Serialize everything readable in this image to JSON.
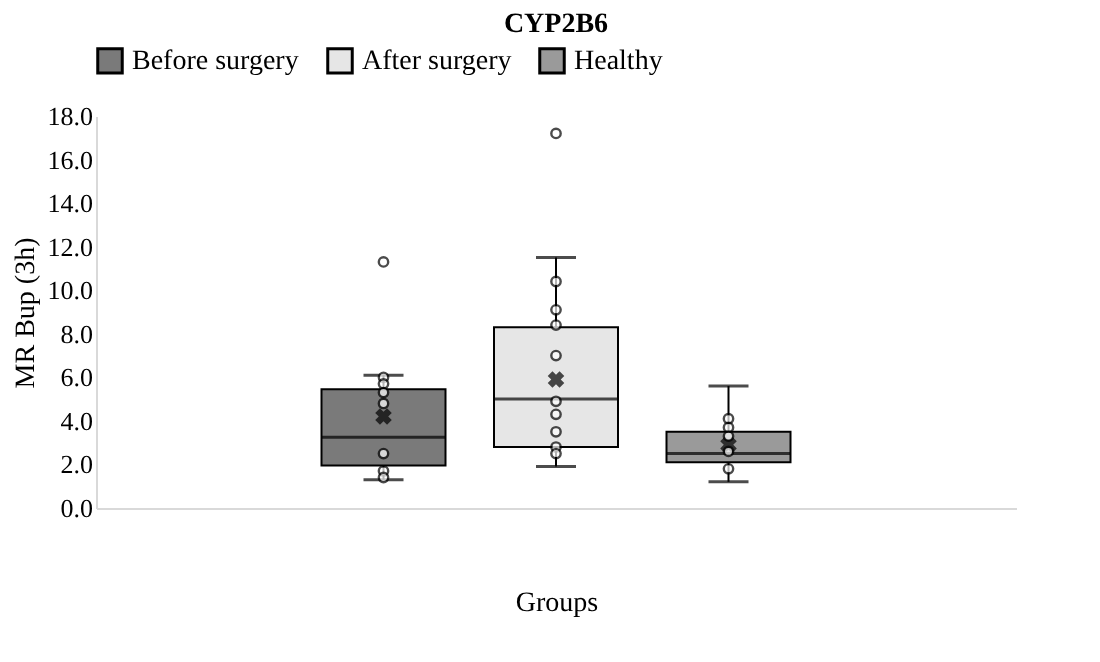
{
  "chart_data": {
    "type": "box",
    "title": "CYP2B6",
    "xlabel": "Groups",
    "ylabel": "MR Bup (3h)",
    "categories": [
      null
    ],
    "series": [
      {
        "name": "Before surgery",
        "color": "#7a7a7a",
        "boxes": [
          {
            "low": 1.3,
            "q1": 1.95,
            "median": 3.25,
            "q3": 5.45,
            "high": 6.1,
            "mean": 4.2,
            "outliers": [
              11.3,
              6.0,
              5.7,
              5.3,
              4.8,
              2.5,
              1.7,
              1.4
            ]
          }
        ]
      },
      {
        "name": "After surgery",
        "color": "#e6e6e6",
        "boxes": [
          {
            "low": 1.9,
            "q1": 2.8,
            "median": 5.0,
            "q3": 8.3,
            "high": 11.5,
            "mean": 5.9,
            "outliers": [
              17.2,
              10.4,
              9.1,
              8.4,
              7.0,
              4.9,
              4.3,
              3.5,
              2.8,
              2.5
            ]
          }
        ]
      },
      {
        "name": "Healthy",
        "color": "#9a9a9a",
        "boxes": [
          {
            "low": 1.2,
            "q1": 2.1,
            "median": 2.5,
            "q3": 3.5,
            "high": 5.6,
            "mean": 2.9,
            "outliers": [
              4.1,
              3.7,
              3.3,
              2.6,
              1.8
            ]
          }
        ]
      }
    ],
    "ylim": [
      0,
      18
    ],
    "yticks": [
      {
        "value": 0,
        "label": "0.0"
      },
      {
        "value": 2,
        "label": "2.0"
      },
      {
        "value": 4,
        "label": "4.0"
      },
      {
        "value": 6,
        "label": "6.0"
      },
      {
        "value": 8,
        "label": "8.0"
      },
      {
        "value": 10,
        "label": "10.0"
      },
      {
        "value": 12,
        "label": "12.0"
      },
      {
        "value": 14,
        "label": "14.0"
      },
      {
        "value": 16,
        "label": "16.0"
      },
      {
        "value": 18,
        "label": "18.0"
      }
    ],
    "grid": false,
    "legend": "top",
    "tick_labels": "y"
  }
}
